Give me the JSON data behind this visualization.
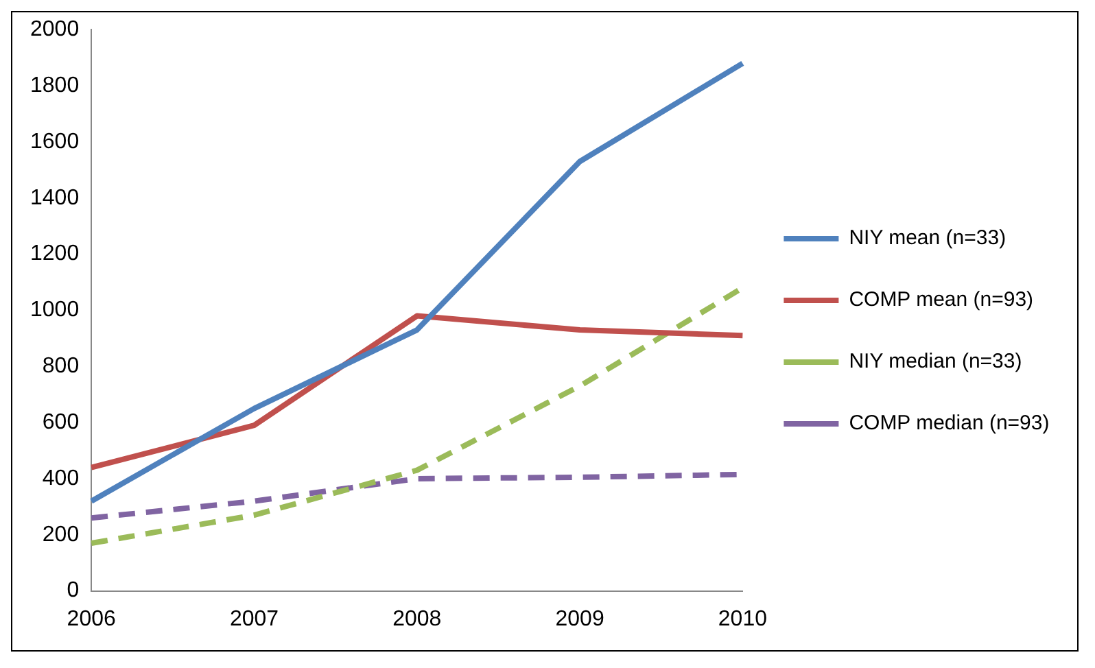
{
  "chart_data": {
    "type": "line",
    "categories": [
      "2006",
      "2007",
      "2008",
      "2009",
      "2010"
    ],
    "series": [
      {
        "name": "NIY mean (n=33)",
        "color": "#4f81bd",
        "values": [
          320,
          650,
          930,
          1530,
          1880
        ],
        "line_style": "solid"
      },
      {
        "name": "COMP mean (n=93)",
        "color": "#c0504d",
        "values": [
          440,
          590,
          980,
          930,
          910
        ],
        "line_style": "solid"
      },
      {
        "name": "NIY median (n=33)",
        "color": "#9bbb59",
        "values": [
          170,
          270,
          430,
          730,
          1080
        ],
        "line_style": "dashed"
      },
      {
        "name": "COMP median (n=93)",
        "color": "#8064a2",
        "values": [
          260,
          320,
          400,
          405,
          415
        ],
        "line_style": "dashed"
      }
    ],
    "ylim": [
      0,
      2000
    ],
    "yticks": [
      0,
      200,
      400,
      600,
      800,
      1000,
      1200,
      1400,
      1600,
      1800,
      2000
    ],
    "grid": false,
    "legend": "right",
    "marker": "none"
  }
}
